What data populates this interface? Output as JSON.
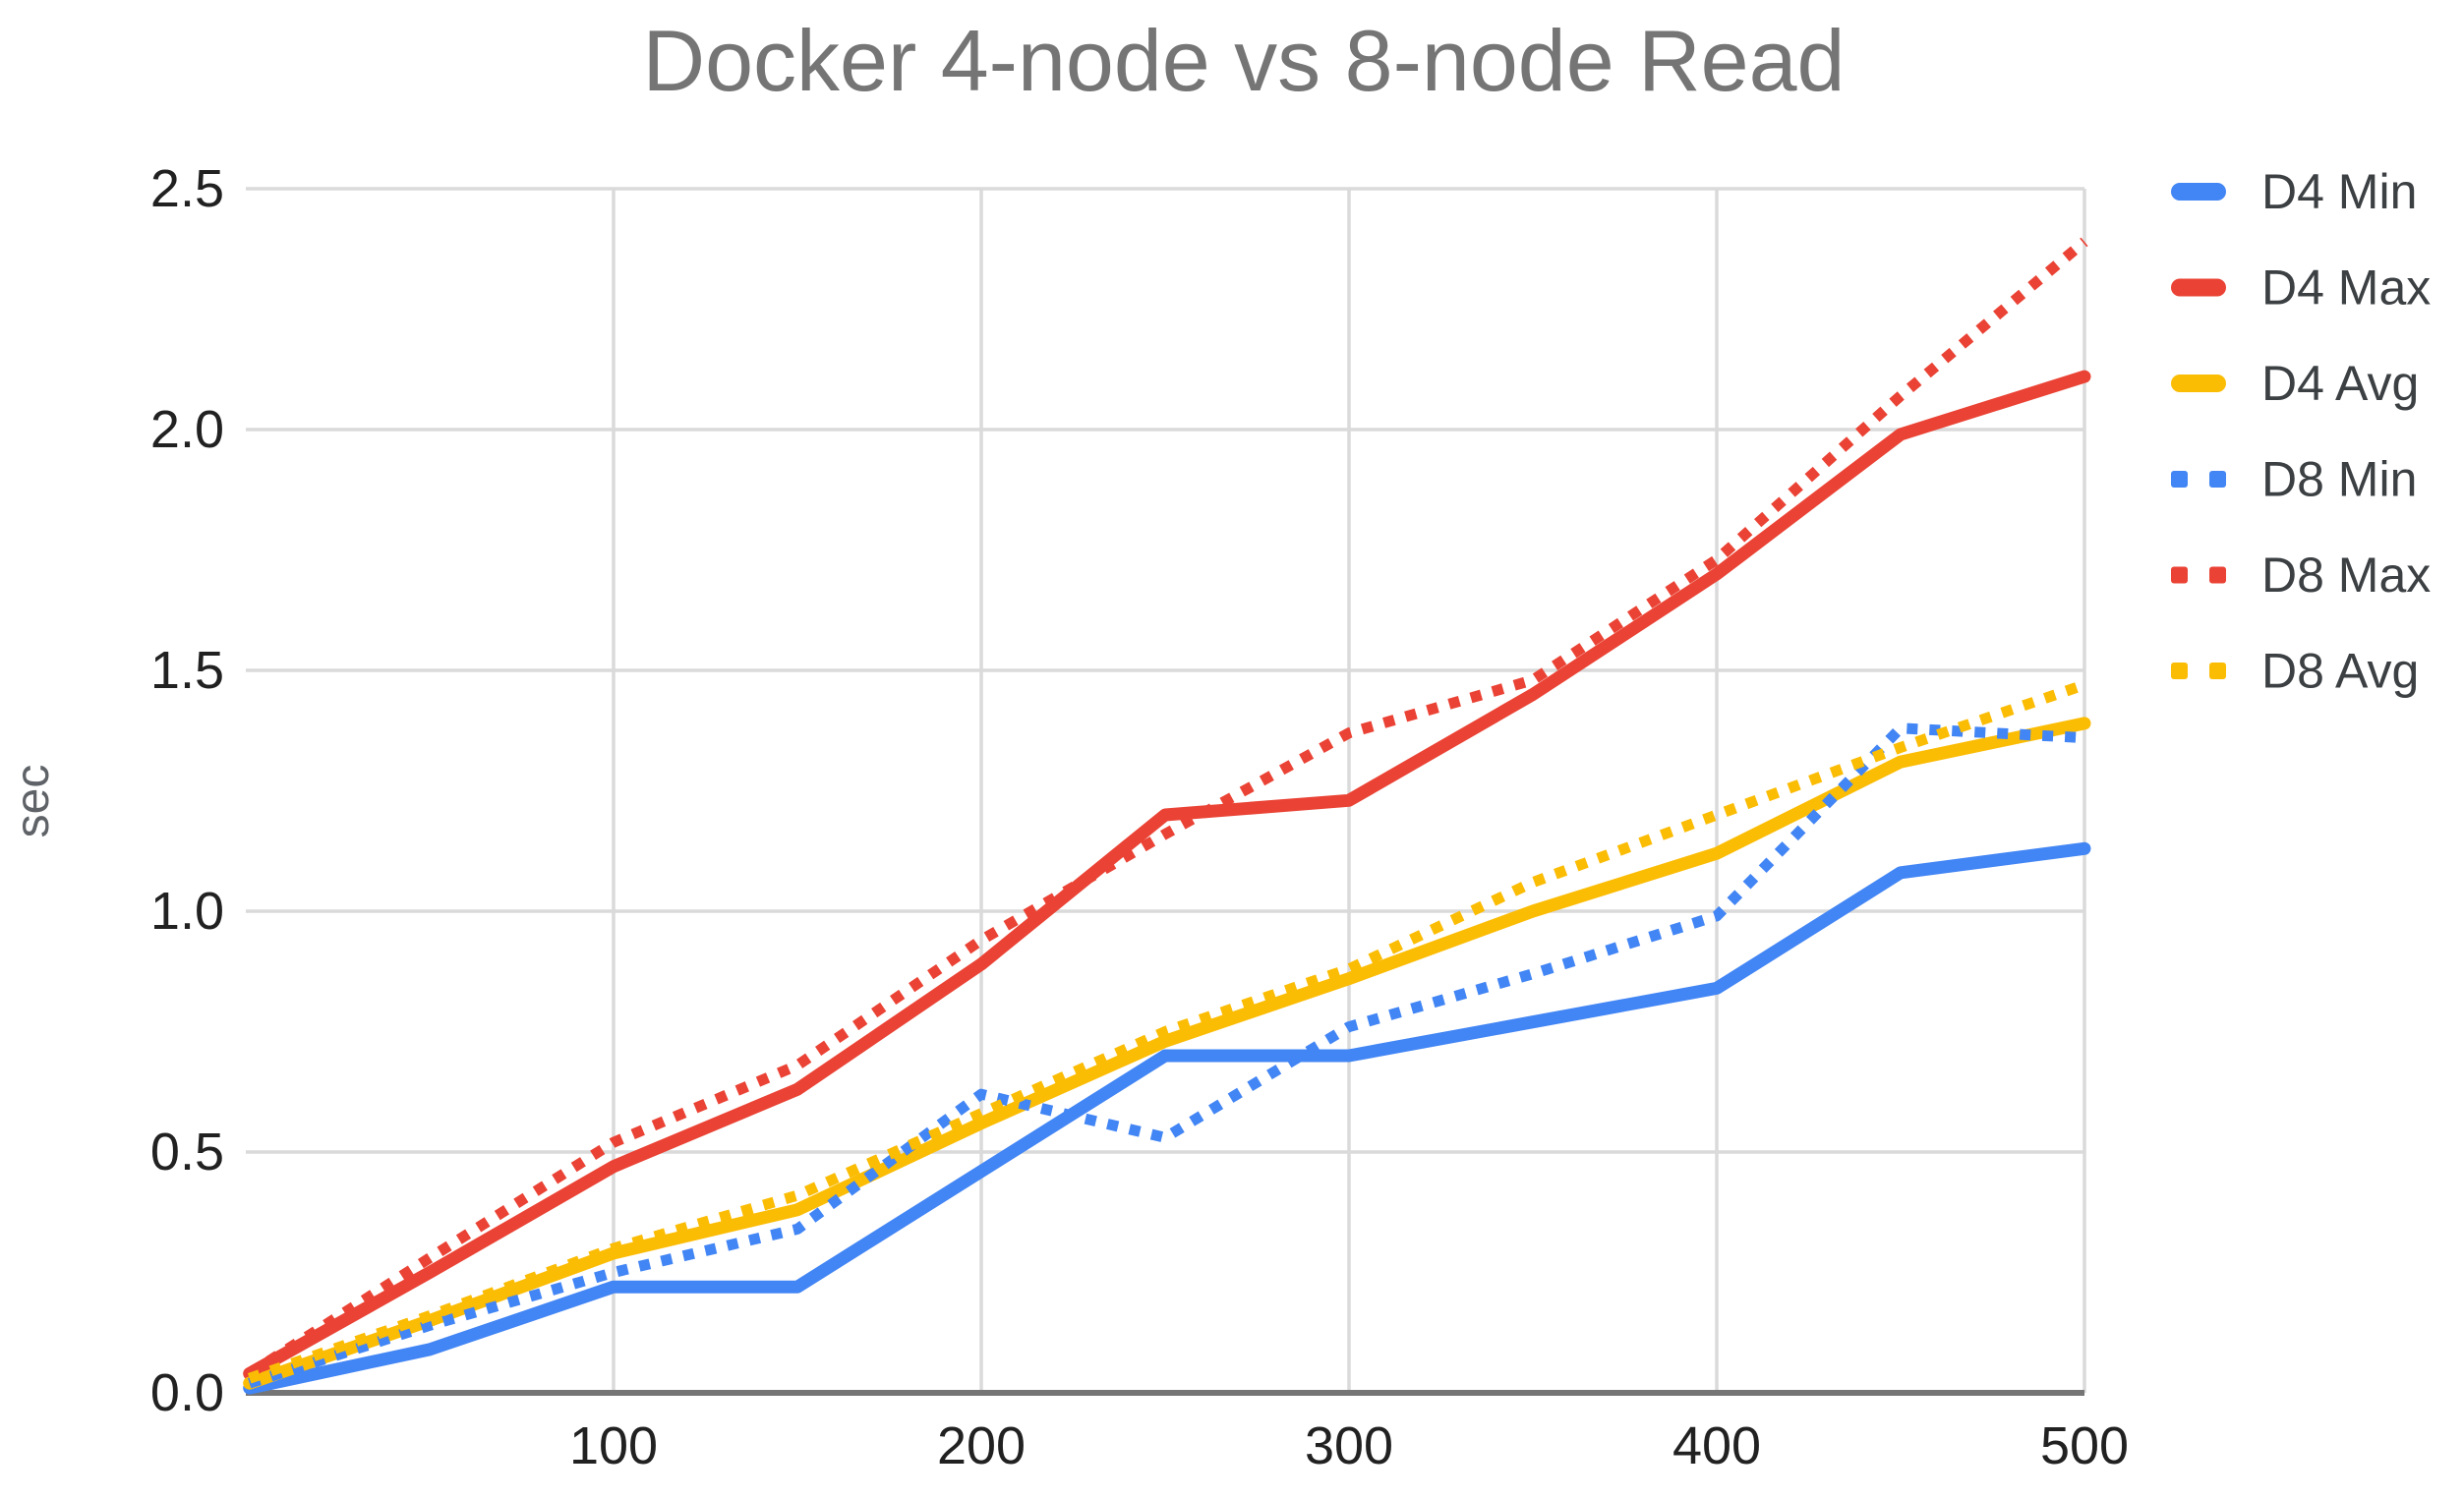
{
  "title": "Docker 4-node vs 8-node Read",
  "chart_data": {
    "type": "line",
    "title": "Docker 4-node vs 8-node Read",
    "xlabel": "",
    "ylabel": "sec",
    "xlim": [
      0,
      500
    ],
    "ylim": [
      0,
      2.5
    ],
    "x_ticks": [
      100,
      200,
      300,
      400,
      500
    ],
    "y_ticks": [
      0,
      0.5,
      1.0,
      1.5,
      2.0,
      2.5
    ],
    "grid": true,
    "legend_position": "right",
    "x": [
      1,
      50,
      100,
      150,
      200,
      250,
      300,
      350,
      400,
      450,
      500
    ],
    "series": [
      {
        "name": "D4 Min",
        "color": "#4285f4",
        "line_style": "solid",
        "values": [
          0.01,
          0.09,
          0.22,
          0.22,
          0.46,
          0.7,
          0.7,
          0.77,
          0.84,
          1.08,
          1.13
        ]
      },
      {
        "name": "D4 Max",
        "color": "#ea4335",
        "line_style": "solid",
        "values": [
          0.04,
          0.25,
          0.47,
          0.63,
          0.89,
          1.2,
          1.23,
          1.45,
          1.7,
          1.99,
          2.11
        ]
      },
      {
        "name": "D4 Avg",
        "color": "#fbbc04",
        "line_style": "solid",
        "values": [
          0.02,
          0.15,
          0.29,
          0.38,
          0.56,
          0.73,
          0.86,
          1.0,
          1.12,
          1.31,
          1.39
        ]
      },
      {
        "name": "D8 Min",
        "color": "#4285f4",
        "line_style": "dotted",
        "values": [
          0.02,
          0.14,
          0.25,
          0.34,
          0.62,
          0.53,
          0.76,
          0.87,
          0.99,
          1.38,
          1.36
        ]
      },
      {
        "name": "D8 Max",
        "color": "#ea4335",
        "line_style": "dotted",
        "values": [
          0.04,
          0.28,
          0.52,
          0.68,
          0.94,
          1.16,
          1.37,
          1.48,
          1.73,
          2.07,
          2.39
        ]
      },
      {
        "name": "D8 Avg",
        "color": "#fbbc04",
        "line_style": "dotted",
        "values": [
          0.03,
          0.16,
          0.3,
          0.41,
          0.58,
          0.75,
          0.88,
          1.06,
          1.2,
          1.34,
          1.47
        ]
      }
    ]
  },
  "axes": {
    "y_tick_labels": [
      "0.0",
      "0.5",
      "1.0",
      "1.5",
      "2.0",
      "2.5"
    ],
    "x_tick_labels": [
      "100",
      "200",
      "300",
      "400",
      "500"
    ]
  },
  "styles": {
    "background": "#ffffff",
    "title_color": "#757575",
    "tick_label_color": "#212121",
    "y_label_color": "#5f6368",
    "legend_text_color": "#3c4043",
    "grid_color": "#dadada",
    "axis_line_color": "#757575",
    "series_blue": "#4285f4",
    "series_red": "#ea4335",
    "series_yellow": "#fbbc04"
  }
}
